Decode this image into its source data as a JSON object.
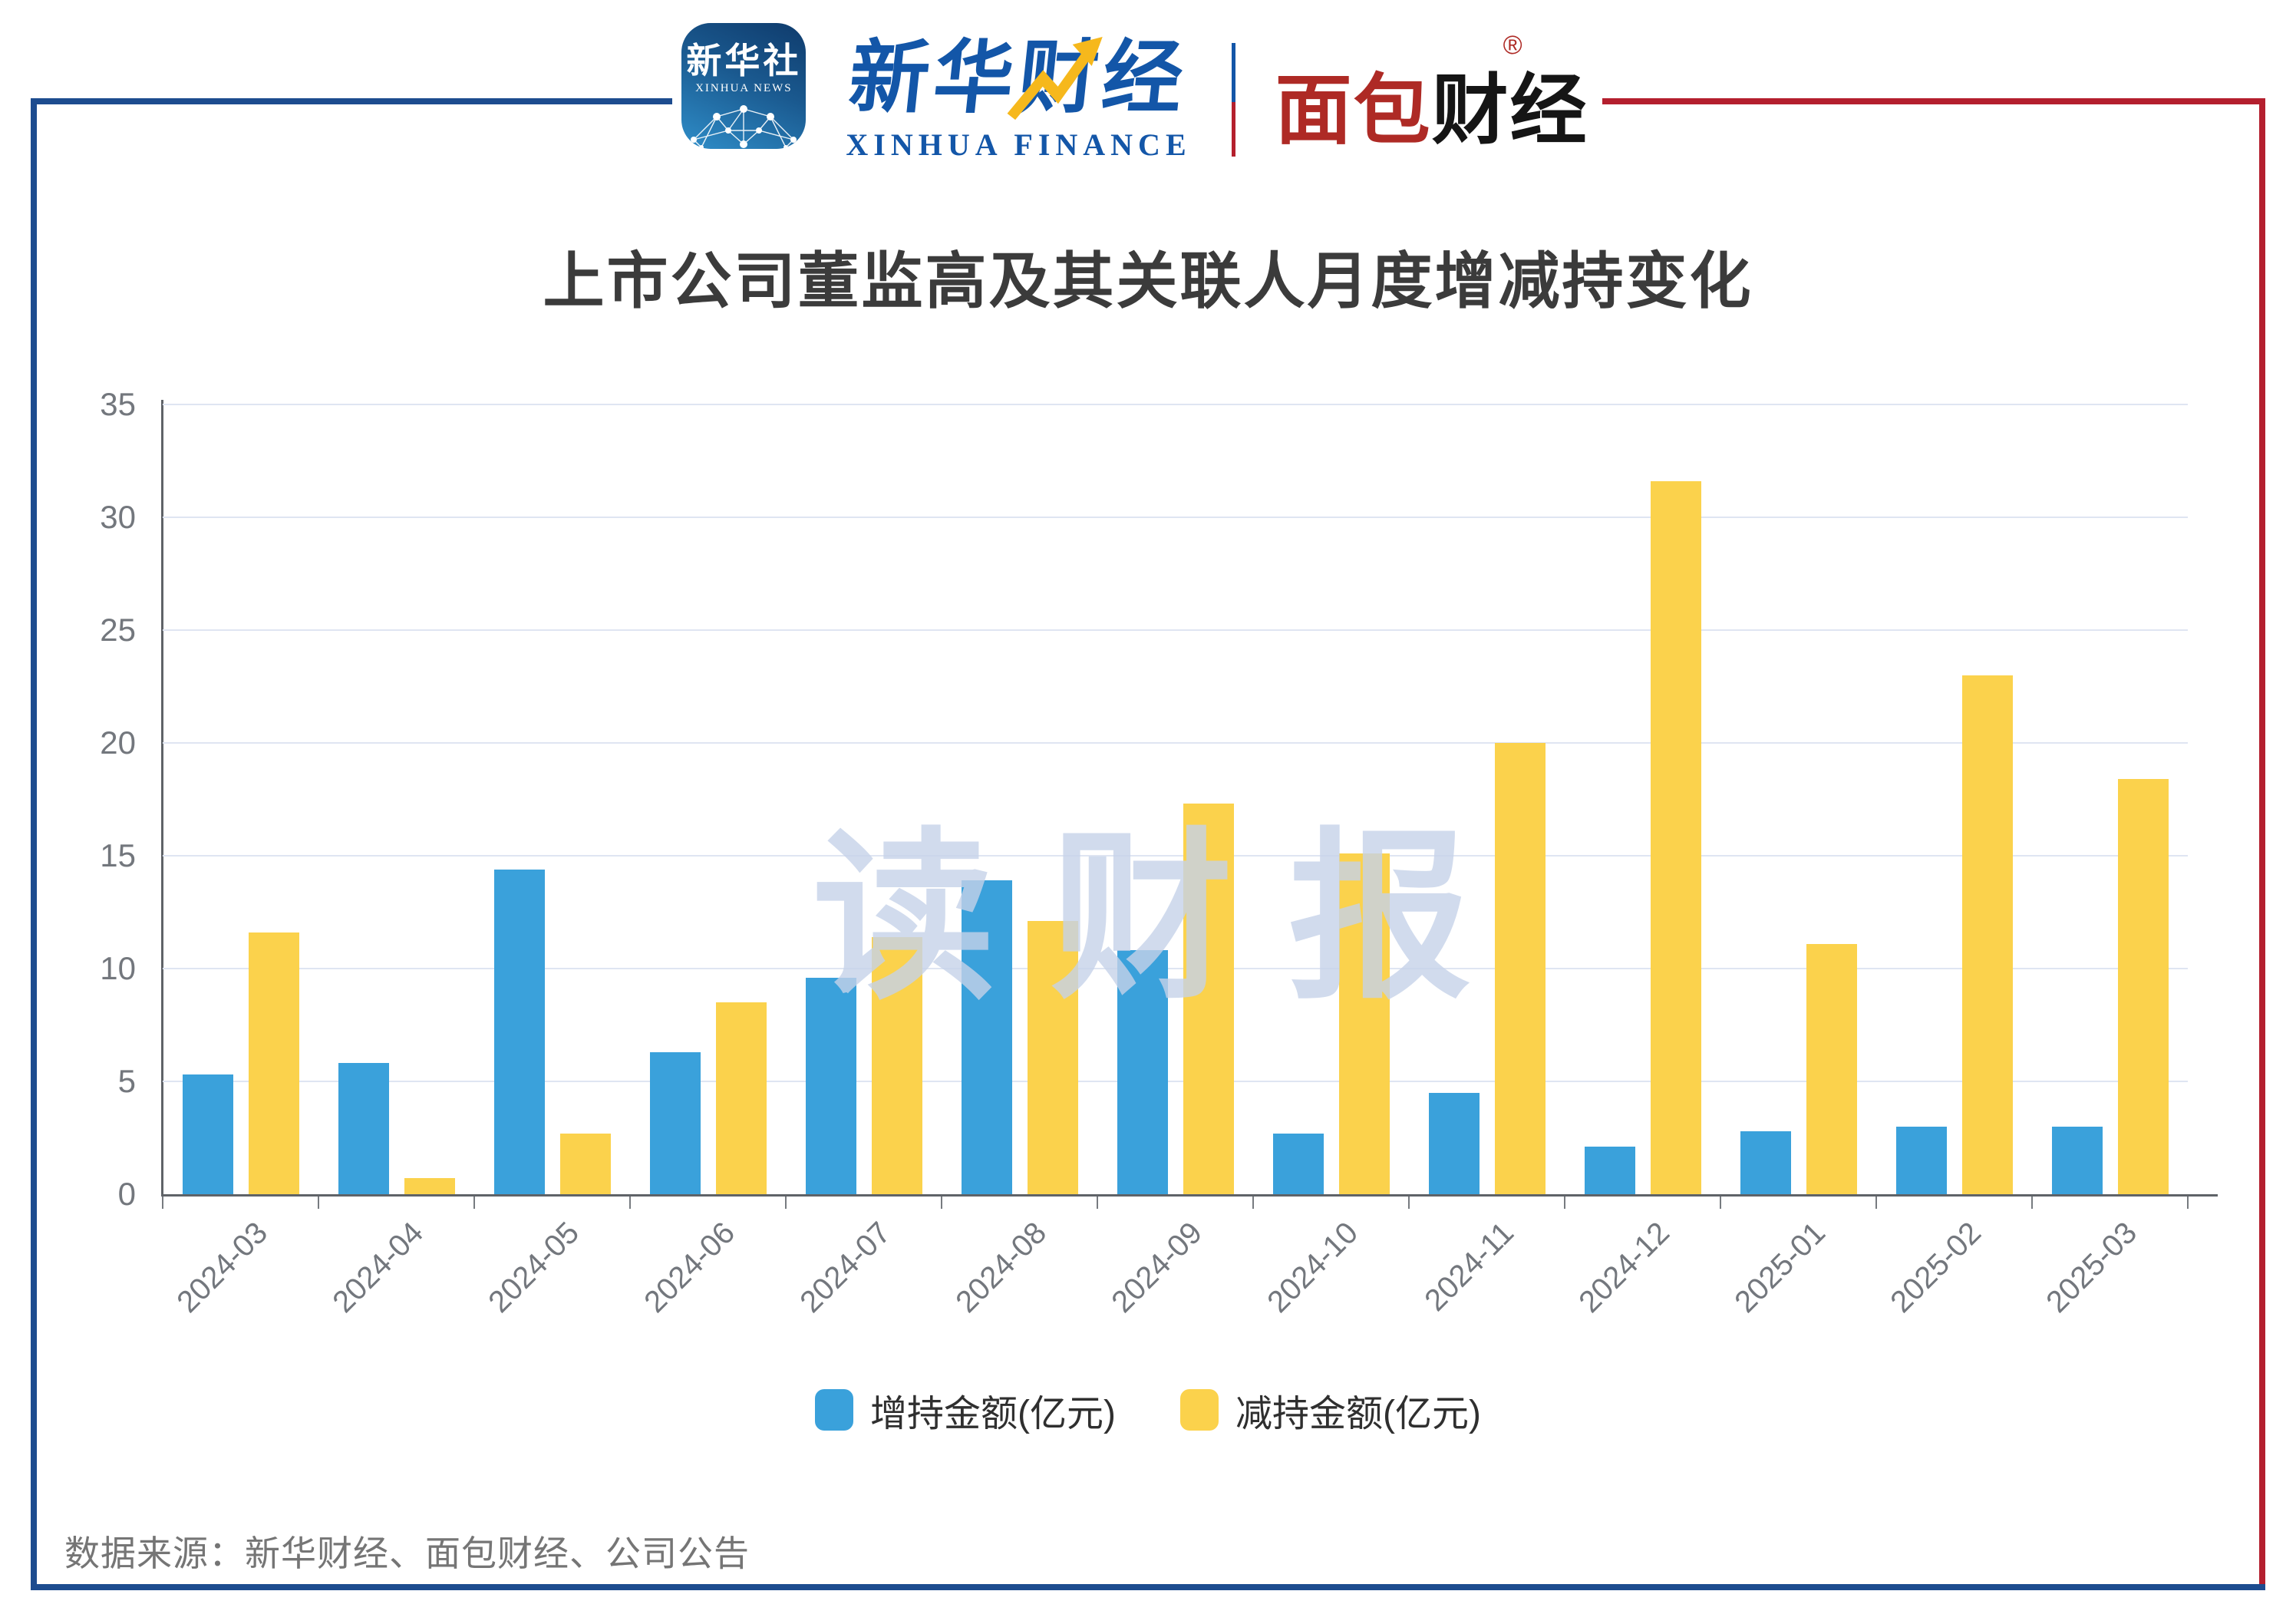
{
  "header": {
    "xinhua_news_icon": {
      "cn": "新华社",
      "en": "XINHUA NEWS"
    },
    "xinhua_finance": {
      "cn": "新华财经",
      "en": "XINHUA FINANCE"
    },
    "bread_finance": {
      "cn_red": "面包",
      "cn_black": "财经",
      "registered_mark": "®"
    }
  },
  "watermark": "读财报",
  "source_note": "数据来源：新华财经、面包财经、公司公告",
  "colors": {
    "frame_blue": "#1D4C8F",
    "frame_red": "#B41F2E",
    "logo_blue": "#1356A8",
    "logo_arrow_yellow": "#F6B81C",
    "bread_red": "#AE2A25",
    "bread_black": "#151515",
    "title_text": "#3B3B3B",
    "axis_line": "#5F6368",
    "gridline": "#DFE5F2",
    "tick_label": "#73777D",
    "legend_text": "#2F2F2F",
    "watermark": "#C5D2E8",
    "source_text": "#757575"
  },
  "chart_data": {
    "type": "bar",
    "title": "上市公司董监高及其关联人月度增减持变化",
    "categories": [
      "2024-03",
      "2024-04",
      "2024-05",
      "2024-06",
      "2024-07",
      "2024-08",
      "2024-09",
      "2024-10",
      "2024-11",
      "2024-12",
      "2025-01",
      "2025-02",
      "2025-03"
    ],
    "series": [
      {
        "name": "增持金额(亿元)",
        "color": "#3AA1DB",
        "values": [
          5.3,
          5.8,
          14.4,
          6.3,
          9.6,
          13.9,
          10.8,
          2.7,
          4.5,
          2.1,
          2.8,
          3.0,
          3.0
        ]
      },
      {
        "name": "减持金额(亿元)",
        "color": "#FBD24C",
        "values": [
          11.6,
          0.7,
          2.7,
          8.5,
          11.4,
          12.1,
          17.3,
          15.1,
          20.0,
          31.6,
          11.1,
          23.0,
          18.4
        ]
      }
    ],
    "xlabel": "",
    "ylabel": "",
    "ylim": [
      0,
      35
    ],
    "yticks": [
      0,
      5,
      10,
      15,
      20,
      25,
      30,
      35
    ],
    "grid": true,
    "legend_position": "bottom"
  }
}
